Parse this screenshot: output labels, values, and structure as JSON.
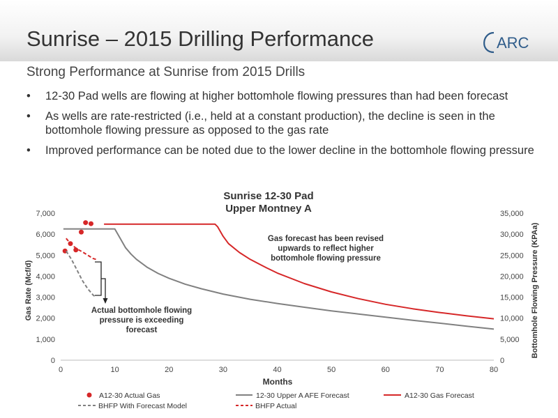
{
  "header": {
    "title": "Sunrise – 2015 Drilling Performance",
    "logo_text": "ARC"
  },
  "subtitle": "Strong Performance at Sunrise from 2015 Drills",
  "bullets": [
    "12-30 Pad wells are flowing at higher bottomhole flowing pressures than had been forecast",
    "As wells are rate-restricted (i.e., held at a constant production), the decline is seen in the bottomhole flowing pressure as opposed to the gas rate",
    "Improved performance can be noted due to the lower decline in the bottomhole flowing pressure"
  ],
  "colors": {
    "red": "#d62728",
    "gray": "#808080",
    "text": "#333333"
  },
  "chart_data": {
    "type": "line",
    "title": [
      "Sunrise 12-30 Pad",
      "Upper Montney A"
    ],
    "xlabel": "Months",
    "ylabel": "Gas Rate (Mcf/d)",
    "y2label": "Bottomhole Flowing Pressure (KPAa)",
    "xlim": [
      0,
      80
    ],
    "ylim": [
      0,
      7000
    ],
    "y2lim": [
      0,
      35000
    ],
    "xticks": [
      "0",
      "10",
      "20",
      "30",
      "40",
      "50",
      "60",
      "70",
      "80"
    ],
    "yticks": [
      "0",
      "1,000",
      "2,000",
      "3,000",
      "4,000",
      "5,000",
      "6,000",
      "7,000"
    ],
    "y2ticks": [
      "0",
      "5,000",
      "10,000",
      "15,000",
      "20,000",
      "25,000",
      "30,000",
      "35,000"
    ],
    "grid": false,
    "legend_position": "bottom",
    "series": [
      {
        "name": "A12-30 Actual Gas",
        "kind": "scatter",
        "axis": "left",
        "color": "#d62728",
        "x": [
          0.8,
          1.8,
          2.8,
          3.8,
          4.6,
          5.6
        ],
        "y": [
          5200,
          5550,
          5250,
          6100,
          6550,
          6500
        ]
      },
      {
        "name": "12-30 Upper A AFE Forecast",
        "kind": "line",
        "axis": "left",
        "color": "#808080",
        "dash": "solid",
        "x": [
          0.5,
          10,
          11,
          12,
          13,
          14,
          16,
          18,
          20,
          23,
          26,
          30,
          35,
          40,
          45,
          50,
          55,
          60,
          65,
          70,
          75,
          80
        ],
        "y": [
          6250,
          6250,
          5800,
          5350,
          5050,
          4800,
          4420,
          4130,
          3900,
          3620,
          3400,
          3150,
          2900,
          2700,
          2520,
          2350,
          2200,
          2050,
          1900,
          1760,
          1620,
          1480
        ]
      },
      {
        "name": "A12-30  Gas Forecast",
        "kind": "line",
        "axis": "left",
        "color": "#d62728",
        "dash": "solid",
        "x": [
          8,
          28.5,
          29,
          30,
          31,
          33,
          35,
          38,
          40,
          45,
          50,
          55,
          60,
          65,
          70,
          75,
          80
        ],
        "y": [
          6480,
          6480,
          6350,
          5900,
          5550,
          5130,
          4800,
          4400,
          4150,
          3650,
          3250,
          2930,
          2660,
          2450,
          2270,
          2110,
          1970
        ]
      },
      {
        "name": "BHFP With Forecast Model",
        "kind": "line",
        "axis": "right",
        "color": "#808080",
        "dash": "dashed",
        "x": [
          1,
          2,
          3,
          4,
          5,
          6,
          6.5
        ],
        "y": [
          26000,
          24000,
          21500,
          19000,
          17000,
          15500,
          15000
        ]
      },
      {
        "name": "BHFP Actual",
        "kind": "line",
        "axis": "right",
        "color": "#d62728",
        "dash": "dashed",
        "x": [
          1,
          2,
          3,
          4,
          5,
          6,
          6.5
        ],
        "y": [
          29000,
          27500,
          26500,
          25800,
          25000,
          24200,
          24000
        ]
      }
    ],
    "annotations": [
      {
        "text": [
          "Gas forecast has been revised",
          "upwards to reflect higher",
          "bottomhole flowing pressure"
        ]
      },
      {
        "text": [
          "Actual bottomhole flowing",
          "pressure is exceeding",
          "forecast"
        ]
      }
    ]
  }
}
